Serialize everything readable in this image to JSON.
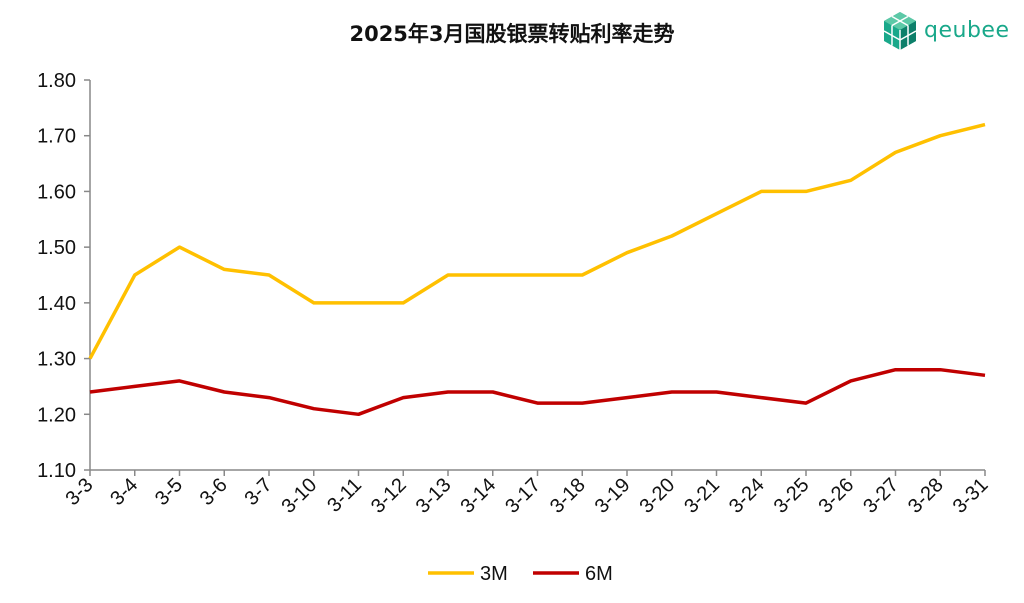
{
  "brand": {
    "logo_text": "qeubee",
    "logo_color": "#19a88a",
    "logo_color_dark": "#0d7f6a"
  },
  "chart_data": {
    "type": "line",
    "title": "2025年3月国股银票转贴利率走势",
    "xlabel": "",
    "ylabel": "",
    "ylim": [
      1.1,
      1.8
    ],
    "yticks": [
      "1.10",
      "1.20",
      "1.30",
      "1.40",
      "1.50",
      "1.60",
      "1.70",
      "1.80"
    ],
    "grid": false,
    "legend_position": "bottom",
    "categories": [
      "3-3",
      "3-4",
      "3-5",
      "3-6",
      "3-7",
      "3-10",
      "3-11",
      "3-12",
      "3-13",
      "3-14",
      "3-17",
      "3-18",
      "3-19",
      "3-20",
      "3-21",
      "3-24",
      "3-25",
      "3-26",
      "3-27",
      "3-28",
      "3-31"
    ],
    "series": [
      {
        "name": "3M",
        "color": "#ffc000",
        "values": [
          1.3,
          1.45,
          1.5,
          1.46,
          1.45,
          1.4,
          1.4,
          1.4,
          1.45,
          1.45,
          1.45,
          1.45,
          1.49,
          1.52,
          1.56,
          1.6,
          1.6,
          1.62,
          1.67,
          1.7,
          1.72
        ]
      },
      {
        "name": "6M",
        "color": "#c00000",
        "values": [
          1.24,
          1.25,
          1.26,
          1.24,
          1.23,
          1.21,
          1.2,
          1.23,
          1.24,
          1.24,
          1.22,
          1.22,
          1.23,
          1.24,
          1.24,
          1.23,
          1.22,
          1.26,
          1.28,
          1.28,
          1.27
        ]
      }
    ]
  }
}
